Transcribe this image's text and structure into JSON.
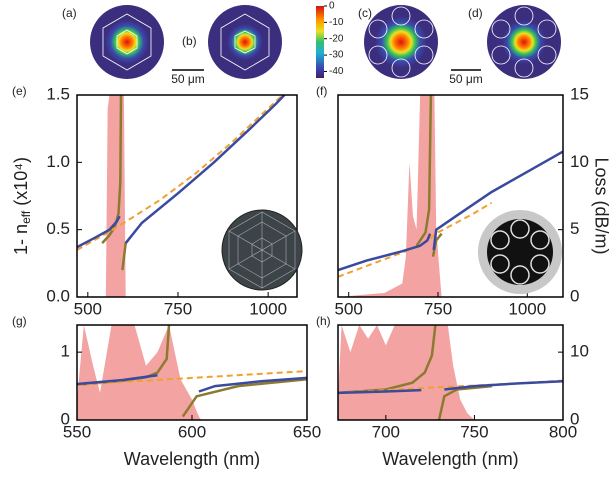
{
  "mode_images": {
    "panel_labels": [
      "(a)",
      "(b)",
      "(c)",
      "(d)"
    ],
    "scale_bars": [
      "50 μm",
      "50 μm"
    ],
    "colorbar": {
      "lim": [
        -44,
        0
      ],
      "ticks": [
        0,
        -10,
        -20,
        -30,
        -40
      ]
    }
  },
  "chart_data": [
    {
      "type": "line",
      "panel_label": "(e)",
      "y_label": "1- n",
      "y_label_sub": "eff",
      "y_label_tail": "(x10⁴)",
      "xlim": [
        470,
        1080
      ],
      "xticks": [
        500,
        750,
        1000
      ],
      "ylim": [
        0,
        1.5
      ],
      "yticks": [
        {
          "value": 0,
          "label": "0.0"
        },
        {
          "value": 0.5,
          "label": "0.5"
        },
        {
          "value": 1,
          "label": "1.0"
        },
        {
          "value": 1.5,
          "label": "1.5"
        }
      ],
      "y2lim": [
        0,
        15
      ],
      "series": [
        {
          "kind": "area",
          "axis": "y2",
          "color": "#f4a3a3",
          "x": [
            550,
            555,
            560,
            570,
            580,
            590,
            600,
            605
          ],
          "values": [
            0,
            14,
            15,
            15,
            15,
            15,
            15,
            0
          ]
        },
        {
          "kind": "line",
          "color": "#8c7a2e",
          "x": [
            540,
            560,
            575,
            585,
            590,
            592,
            593,
            596,
            605,
            620
          ],
          "values": [
            0.4,
            0.46,
            0.52,
            0.62,
            0.85,
            1.5,
            null,
            0.2,
            0.4,
            0.45
          ]
        },
        {
          "kind": "line",
          "color": "#f0a030",
          "dashed": true,
          "x": [
            470,
            550,
            600,
            700,
            800,
            900,
            1000,
            1040
          ],
          "values": [
            0.35,
            0.47,
            0.55,
            0.72,
            0.92,
            1.15,
            1.4,
            1.5
          ]
        },
        {
          "kind": "line",
          "color": "#3a4a9e",
          "x": [
            470,
            520,
            560,
            580,
            588,
            null,
            605,
            650,
            750,
            850,
            950,
            1020,
            1045
          ],
          "values": [
            0.37,
            0.44,
            0.5,
            0.56,
            0.6,
            null,
            0.4,
            0.55,
            0.77,
            1.0,
            1.25,
            1.43,
            1.5
          ]
        }
      ]
    },
    {
      "type": "line",
      "panel_label": "(f)",
      "y2_label": "Loss (dB/m)",
      "xlim": [
        470,
        1100
      ],
      "xticks": [
        500,
        750,
        1000
      ],
      "ylim": [
        0,
        1.5
      ],
      "y2lim": [
        0,
        15
      ],
      "y2ticks": [
        0,
        5,
        10,
        15
      ],
      "series": [
        {
          "kind": "area",
          "axis": "y2",
          "color": "#f4a3a3",
          "x": [
            470,
            600,
            650,
            660,
            670,
            680,
            690,
            700,
            710,
            740,
            745,
            760
          ],
          "values": [
            0,
            0.3,
            1,
            3,
            10,
            6,
            5,
            15,
            15,
            15,
            5,
            0
          ]
        },
        {
          "kind": "line",
          "color": "#8c7a2e",
          "x": [
            690,
            715,
            725,
            730,
            732,
            736,
            745,
            760
          ],
          "values": [
            0.38,
            0.48,
            0.65,
            1.5,
            null,
            0.3,
            0.42,
            0.47
          ]
        },
        {
          "kind": "line",
          "color": "#f0a030",
          "dashed": true,
          "x": [
            470,
            600,
            700,
            750,
            850,
            900
          ],
          "values": [
            0.15,
            0.28,
            0.38,
            0.48,
            0.62,
            0.7
          ]
        },
        {
          "kind": "line",
          "color": "#3a4a9e",
          "x": [
            470,
            550,
            650,
            700,
            720,
            728,
            null,
            738,
            745,
            800,
            900,
            1000,
            1100
          ],
          "values": [
            0.2,
            0.27,
            0.34,
            0.38,
            0.42,
            0.47,
            null,
            0.35,
            0.5,
            0.6,
            0.78,
            0.93,
            1.08
          ]
        }
      ]
    },
    {
      "type": "line",
      "panel_label": "(g)",
      "x_label": "Wavelength (nm)",
      "xlim": [
        550,
        650
      ],
      "xticks": [
        550,
        600,
        650
      ],
      "ylim": [
        0,
        1.4
      ],
      "yticks": [
        0,
        1
      ],
      "y2lim": [
        0,
        14
      ],
      "series": [
        {
          "kind": "area",
          "axis": "y2",
          "color": "#f4a3a3",
          "x": [
            550,
            553,
            557,
            560,
            565,
            575,
            580,
            585,
            590,
            595,
            600,
            603,
            604
          ],
          "values": [
            3,
            14,
            8,
            4,
            14,
            14,
            8,
            10,
            14,
            6,
            3,
            0.5,
            0
          ]
        },
        {
          "kind": "line",
          "color": "#8c7a2e",
          "x": [
            550,
            570,
            580,
            585,
            589,
            590,
            592,
            596,
            602,
            620,
            650
          ],
          "values": [
            0.52,
            0.58,
            0.63,
            0.7,
            0.9,
            1.4,
            null,
            0.05,
            0.35,
            0.5,
            0.6
          ]
        },
        {
          "kind": "line",
          "color": "#f0a030",
          "dashed": true,
          "x": [
            550,
            575,
            600,
            625,
            650
          ],
          "values": [
            0.52,
            0.57,
            0.62,
            0.67,
            0.72
          ]
        },
        {
          "kind": "line",
          "color": "#3a4a9e",
          "x": [
            550,
            570,
            585,
            null,
            603,
            610,
            630,
            650
          ],
          "values": [
            0.53,
            0.59,
            0.66,
            null,
            0.42,
            0.5,
            0.57,
            0.62
          ]
        }
      ]
    },
    {
      "type": "line",
      "panel_label": "(h)",
      "x_label": "Wavelength (nm)",
      "xlim": [
        673,
        800
      ],
      "xticks": [
        700,
        750,
        800
      ],
      "ylim": [
        0,
        1.4
      ],
      "y2lim": [
        0,
        14
      ],
      "y2ticks": [
        0,
        10
      ],
      "series": [
        {
          "kind": "area",
          "axis": "y2",
          "color": "#f4a3a3",
          "x": [
            673,
            675,
            680,
            685,
            690,
            695,
            700,
            705,
            715,
            735,
            738,
            742,
            746,
            750
          ],
          "values": [
            3,
            14,
            10,
            14,
            12,
            14,
            11,
            14,
            14,
            14,
            8,
            3,
            1,
            0
          ]
        },
        {
          "kind": "line",
          "color": "#8c7a2e",
          "x": [
            673,
            700,
            715,
            722,
            726,
            728,
            null,
            730,
            733,
            740,
            760
          ],
          "values": [
            0.4,
            0.45,
            0.55,
            0.7,
            0.95,
            1.4,
            null,
            0.0,
            0.35,
            0.45,
            0.5
          ]
        },
        {
          "kind": "line",
          "color": "#f0a030",
          "dashed": true,
          "x": [
            673,
            720,
            760,
            800
          ],
          "values": [
            0.4,
            0.47,
            0.52,
            0.58
          ]
        },
        {
          "kind": "line",
          "color": "#3a4a9e",
          "x": [
            673,
            700,
            720,
            null,
            733,
            750,
            775,
            800
          ],
          "values": [
            0.4,
            0.42,
            0.44,
            null,
            0.45,
            0.5,
            0.54,
            0.57
          ]
        }
      ]
    }
  ]
}
